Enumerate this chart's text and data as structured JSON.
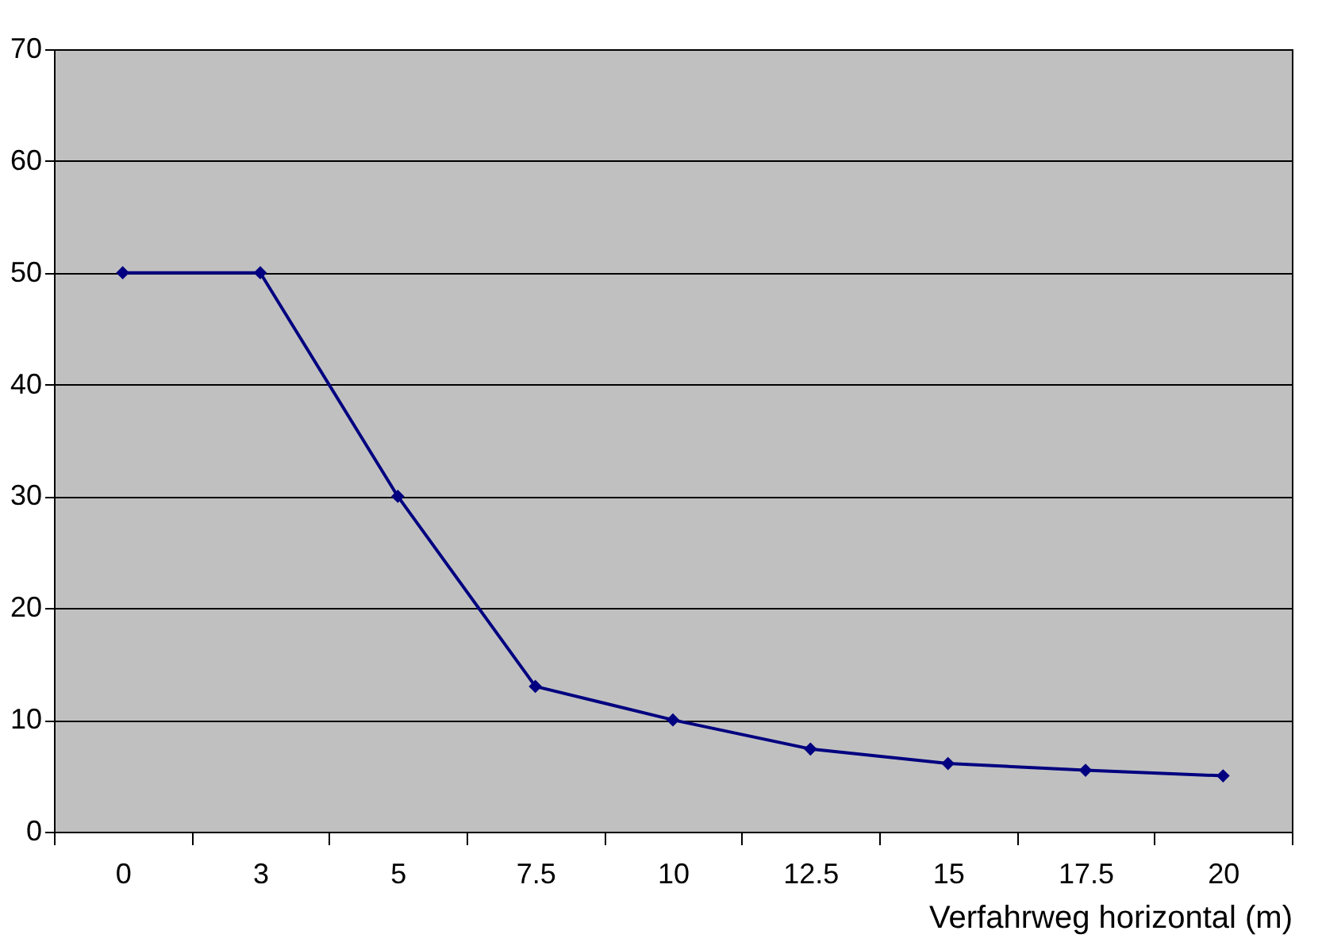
{
  "chart_data": {
    "type": "line",
    "xlabel": "Verfahrweg horizontal (m)",
    "categories": [
      "0",
      "3",
      "5",
      "7.5",
      "10",
      "12.5",
      "15",
      "17.5",
      "20"
    ],
    "series": [
      {
        "color": "#000080",
        "values": [
          50,
          50,
          30,
          13,
          10,
          7.4,
          6.1,
          5.5,
          5.0
        ]
      }
    ],
    "ylim": [
      0,
      70
    ],
    "yticks": [
      0,
      10,
      20,
      30,
      40,
      50,
      60,
      70
    ],
    "grid": "y",
    "marker": "diamond",
    "line_style": "solid"
  }
}
